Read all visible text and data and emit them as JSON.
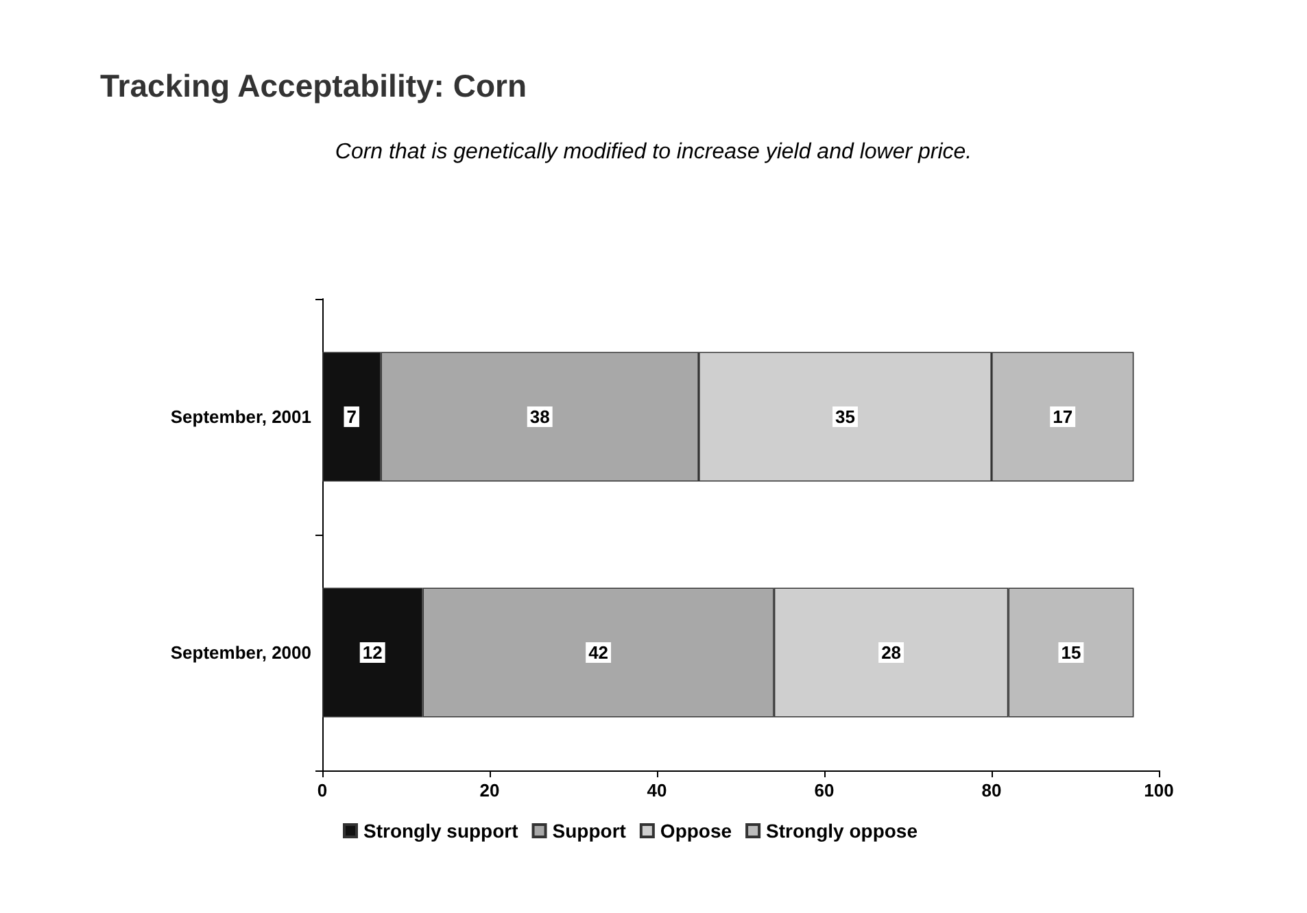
{
  "chart_data": {
    "type": "bar",
    "title": "Tracking Acceptability: Corn",
    "subtitle": "Corn that is genetically modified to increase yield and lower price.",
    "orientation": "horizontal",
    "stacked": true,
    "categories": [
      "September, 2001",
      "September, 2000"
    ],
    "series": [
      {
        "name": "Strongly support",
        "color": "#111111",
        "values": [
          7,
          12
        ]
      },
      {
        "name": "Support",
        "color": "#a8a8a8",
        "values": [
          38,
          42
        ]
      },
      {
        "name": "Oppose",
        "color": "#cfcfcf",
        "values": [
          35,
          28
        ]
      },
      {
        "name": "Strongly oppose",
        "color": "#bcbcbc",
        "values": [
          17,
          15
        ]
      }
    ],
    "xlim": [
      0,
      100
    ],
    "xticks": [
      0,
      20,
      40,
      60,
      80,
      100
    ],
    "grid": false,
    "legend": "bottom",
    "data_labels": true
  }
}
